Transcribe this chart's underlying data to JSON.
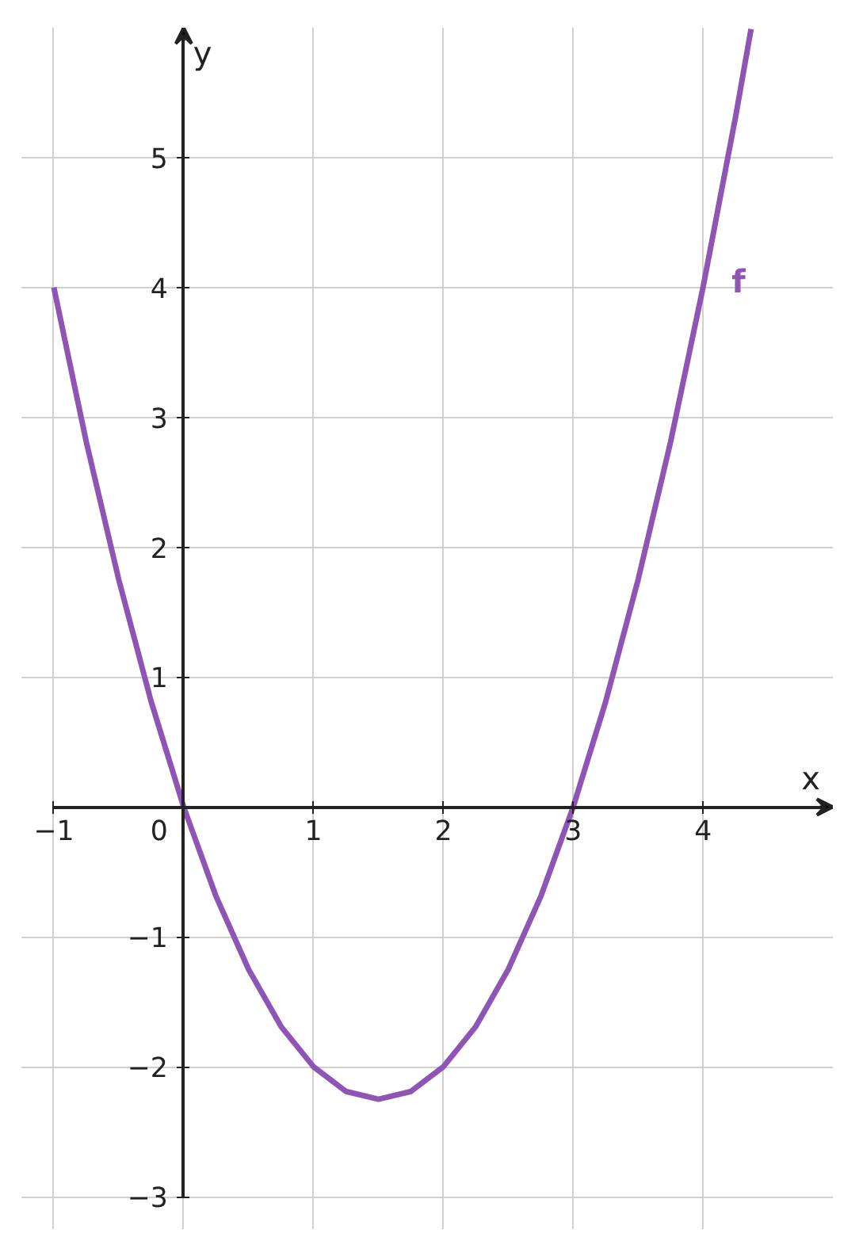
{
  "chart_data": {
    "type": "line",
    "xlabel": "x",
    "ylabel": "y",
    "xlim": [
      -1,
      5
    ],
    "ylim": [
      -3,
      6
    ],
    "xticks": [
      {
        "value": -1,
        "label": "−1"
      },
      0,
      1,
      2,
      3,
      4
    ],
    "yticks": [
      {
        "value": -3,
        "label": "−3"
      },
      {
        "value": -2,
        "label": "−2"
      },
      {
        "value": -1,
        "label": "−1"
      },
      1,
      2,
      3,
      4,
      5
    ],
    "grid": true,
    "line_style": "solid",
    "marker": "none",
    "series": [
      {
        "name": "f",
        "color": "#8e55b5",
        "x": [
          -1,
          -0.75,
          -0.5,
          -0.25,
          0,
          0.25,
          0.5,
          0.75,
          1,
          1.25,
          1.5,
          1.75,
          2,
          2.25,
          2.5,
          2.75,
          3,
          3.25,
          3.5,
          3.75,
          4,
          4.25,
          4.37
        ],
        "values": [
          4,
          2.81,
          1.75,
          0.81,
          0,
          -0.69,
          -1.25,
          -1.69,
          -2,
          -2.19,
          -2.25,
          -2.19,
          -2,
          -1.69,
          -1.25,
          -0.69,
          0,
          0.81,
          1.75,
          2.81,
          4,
          5.31,
          5.99
        ]
      }
    ]
  }
}
